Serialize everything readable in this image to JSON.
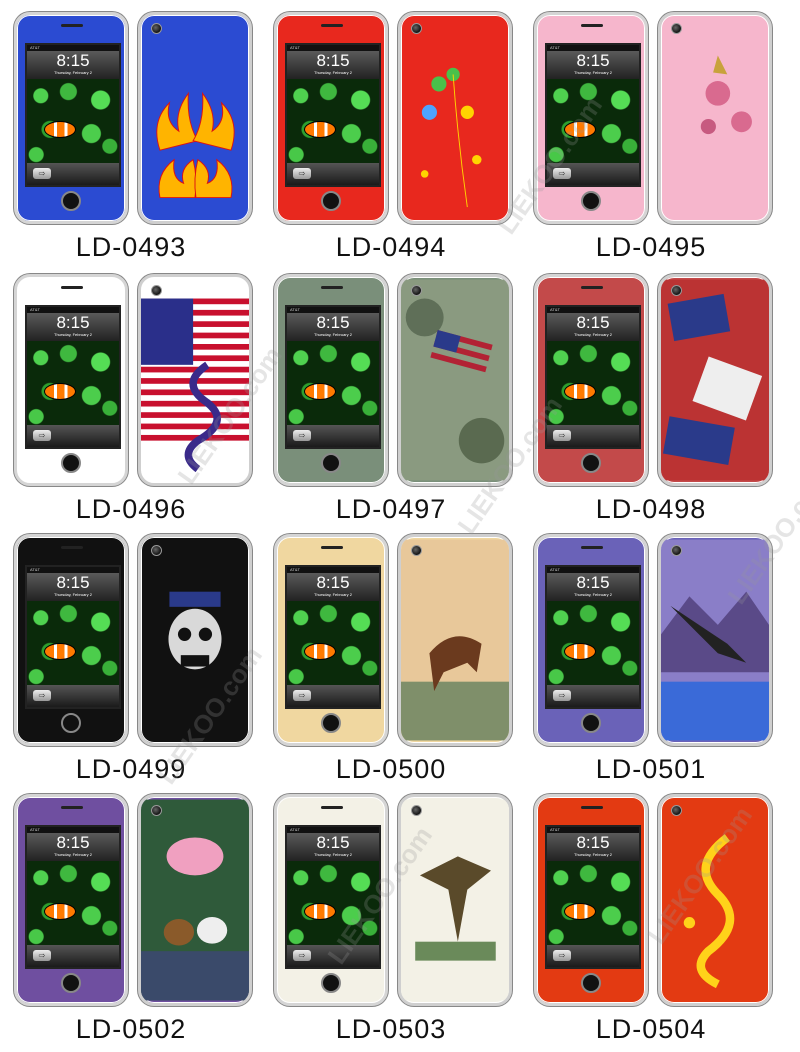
{
  "products": [
    {
      "code": "LD-0493",
      "skin": "#2b4bd2",
      "accent": "#ffb400",
      "art": "flames-art"
    },
    {
      "code": "LD-0494",
      "skin": "#e8281e",
      "accent": "#4ac14a",
      "art": "flowers-art"
    },
    {
      "code": "LD-0495",
      "skin": "#f6b6cc",
      "accent": "#d45a84",
      "art": "roses-art"
    },
    {
      "code": "LD-0496",
      "skin": "#ffffff",
      "accent": "#c8102e",
      "art": "usa-flag-dragon-art"
    },
    {
      "code": "LD-0497",
      "skin": "#7a8f7a",
      "accent": "#b22234",
      "art": "camouflage-flag-art"
    },
    {
      "code": "LD-0498",
      "skin": "#c34a4a",
      "accent": "#2a3a8a",
      "art": "flag-collage-art"
    },
    {
      "code": "LD-0499",
      "skin": "#111111",
      "accent": "#d9d9d9",
      "art": "skull-art"
    },
    {
      "code": "LD-0500",
      "skin": "#f0d7a0",
      "accent": "#6b3a1e",
      "art": "horse-art"
    },
    {
      "code": "LD-0501",
      "skin": "#6a62b8",
      "accent": "#2b2b2b",
      "art": "eagle-art"
    },
    {
      "code": "LD-0502",
      "skin": "#6f4fa0",
      "accent": "#f0f0f0",
      "art": "tiger-lion-art"
    },
    {
      "code": "LD-0503",
      "skin": "#f3f1e6",
      "accent": "#5a4a2a",
      "art": "hawk-art"
    },
    {
      "code": "LD-0504",
      "skin": "#e33a12",
      "accent": "#ffd21a",
      "art": "dragon-art"
    }
  ],
  "lockscreen": {
    "time": "8:15",
    "date": "Thursday, February 2",
    "carrier": "AT&T",
    "slide_glyph": "⇨"
  },
  "watermark": "LIEKOO.com"
}
